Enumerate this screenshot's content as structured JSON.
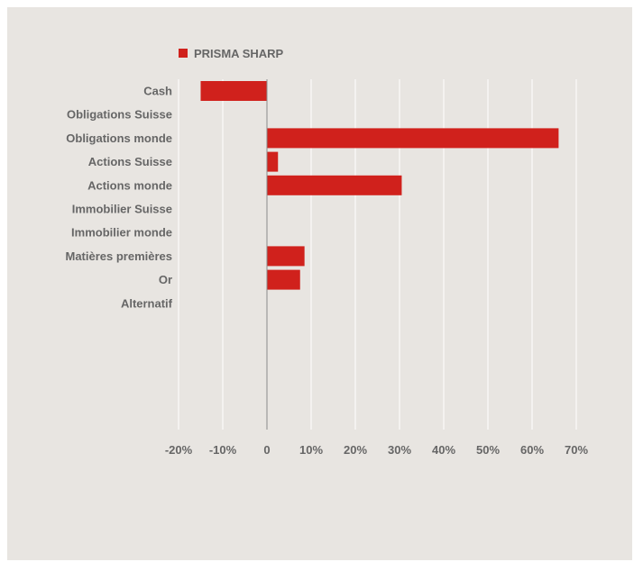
{
  "colors": {
    "background": "#e8e5e1",
    "bar": "#d0211c",
    "gridline": "#ffffff",
    "zero_line": "#8a8a8a",
    "text": "#666666"
  },
  "chart_data": {
    "type": "bar",
    "orientation": "horizontal",
    "title": "",
    "xlabel": "",
    "ylabel": "",
    "categories": [
      "Cash",
      "Obligations Suisse",
      "Obligations monde",
      "Actions Suisse",
      "Actions monde",
      "Immobilier Suisse",
      "Immobilier monde",
      "Matières premières",
      "Or",
      "Alternatif"
    ],
    "series": [
      {
        "name": "PRISMA SHARP",
        "values": [
          -15,
          0,
          66,
          2.5,
          30.5,
          0,
          0,
          8.5,
          7.5,
          0
        ]
      }
    ],
    "xlim": [
      -20,
      70
    ],
    "x_ticks": [
      -20,
      -10,
      0,
      10,
      20,
      30,
      40,
      50,
      60,
      70
    ],
    "x_tick_labels": [
      "-20%",
      "-10%",
      "0",
      "10%",
      "20%",
      "30%",
      "40%",
      "50%",
      "60%",
      "70%"
    ],
    "grid": true,
    "legend_position": "top-left"
  }
}
